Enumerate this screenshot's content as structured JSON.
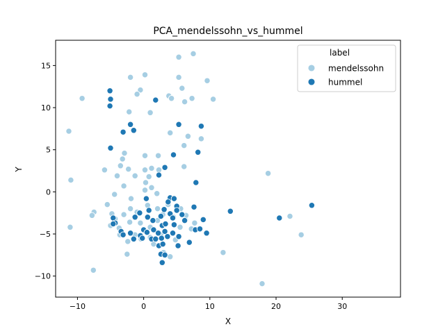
{
  "chart_data": {
    "type": "scatter",
    "title": "PCA_mendelssohn_vs_hummel",
    "xlabel": "X",
    "ylabel": "Y",
    "xlim": [
      -13.3,
      38.8
    ],
    "ylim": [
      -12.5,
      18.0
    ],
    "xticks": [
      -10,
      0,
      10,
      20,
      30
    ],
    "yticks": [
      -10,
      -5,
      0,
      5,
      10,
      15
    ],
    "grid": false,
    "legend": {
      "title": "label",
      "placement": "top-right"
    },
    "series": [
      {
        "name": "mendelssohn",
        "color": "#a6cee3",
        "points": [
          [
            5.3,
            16.0
          ],
          [
            7.5,
            16.4
          ],
          [
            -2.0,
            13.6
          ],
          [
            0.2,
            13.9
          ],
          [
            5.3,
            13.6
          ],
          [
            9.6,
            13.2
          ],
          [
            -0.5,
            12.1
          ],
          [
            3.8,
            11.4
          ],
          [
            5.8,
            12.3
          ],
          [
            -1.0,
            11.6
          ],
          [
            -9.3,
            11.1
          ],
          [
            4.2,
            11.1
          ],
          [
            7.3,
            11.1
          ],
          [
            10.5,
            11.0
          ],
          [
            6.2,
            10.7
          ],
          [
            1.0,
            9.4
          ],
          [
            -2.2,
            9.5
          ],
          [
            4.0,
            7.0
          ],
          [
            -11.3,
            7.2
          ],
          [
            6.7,
            6.6
          ],
          [
            8.7,
            6.3
          ],
          [
            6.1,
            5.5
          ],
          [
            -2.9,
            4.6
          ],
          [
            -3.2,
            3.9
          ],
          [
            0.2,
            4.3
          ],
          [
            2.2,
            4.3
          ],
          [
            6.1,
            3.0
          ],
          [
            1.2,
            2.8
          ],
          [
            -2.3,
            2.7
          ],
          [
            -5.9,
            2.6
          ],
          [
            0.2,
            2.6
          ],
          [
            2.3,
            2.6
          ],
          [
            -3.5,
            3.1
          ],
          [
            -4.0,
            1.9
          ],
          [
            -1.3,
            1.9
          ],
          [
            0.8,
            1.8
          ],
          [
            -3.0,
            0.7
          ],
          [
            -11.0,
            1.4
          ],
          [
            0.3,
            1.1
          ],
          [
            1.2,
            0.5
          ],
          [
            -4.4,
            -0.3
          ],
          [
            2.0,
            -0.2
          ],
          [
            -1.9,
            -0.8
          ],
          [
            0.2,
            0.2
          ],
          [
            -7.5,
            -2.4
          ],
          [
            -5.5,
            -1.5
          ],
          [
            -7.8,
            -2.8
          ],
          [
            -11.1,
            -4.2
          ],
          [
            -4.8,
            -2.6
          ],
          [
            -4.3,
            -3.2
          ],
          [
            -2.0,
            -2.0
          ],
          [
            -1.0,
            -2.4
          ],
          [
            0.6,
            -1.6
          ],
          [
            2.1,
            -2.0
          ],
          [
            -3.0,
            -2.7
          ],
          [
            -2.1,
            -3.6
          ],
          [
            -0.5,
            -3.7
          ],
          [
            -4.9,
            -4.0
          ],
          [
            -1.3,
            -5.1
          ],
          [
            -0.4,
            -5.6
          ],
          [
            1.0,
            -4.2
          ],
          [
            2.6,
            -5.1
          ],
          [
            -2.4,
            -5.9
          ],
          [
            -3.6,
            -5.1
          ],
          [
            1.5,
            -6.2
          ],
          [
            4.0,
            -7.7
          ],
          [
            -2.5,
            -7.4
          ],
          [
            -7.6,
            -9.3
          ],
          [
            4.5,
            -3.0
          ],
          [
            6.3,
            -3.3
          ],
          [
            7.7,
            -3.7
          ],
          [
            5.5,
            -4.2
          ],
          [
            3.7,
            -1.5
          ],
          [
            5.6,
            -2.0
          ],
          [
            6.4,
            -2.8
          ],
          [
            2.9,
            -2.7
          ],
          [
            12.0,
            -7.2
          ],
          [
            18.8,
            2.2
          ],
          [
            22.1,
            -2.9
          ],
          [
            23.8,
            -5.1
          ],
          [
            17.9,
            -10.9
          ],
          [
            -5.0,
            -4.0
          ],
          [
            3.0,
            -7.2
          ],
          [
            -3.7,
            -4.3
          ],
          [
            1.0,
            -5.4
          ],
          [
            4.8,
            -5.7
          ],
          [
            7.2,
            -4.4
          ],
          [
            2.1,
            -3.4
          ]
        ]
      },
      {
        "name": "hummel",
        "color": "#1f78b4",
        "points": [
          [
            -5.1,
            12.0
          ],
          [
            -5.0,
            11.0
          ],
          [
            1.8,
            10.9
          ],
          [
            -5.1,
            10.2
          ],
          [
            5.3,
            8.0
          ],
          [
            8.7,
            7.8
          ],
          [
            -2.0,
            8.0
          ],
          [
            -1.5,
            7.3
          ],
          [
            -3.1,
            7.1
          ],
          [
            -5.0,
            5.2
          ],
          [
            4.5,
            4.4
          ],
          [
            8.2,
            4.7
          ],
          [
            3.2,
            2.9
          ],
          [
            2.3,
            2.0
          ],
          [
            7.9,
            1.1
          ],
          [
            4.0,
            -0.7
          ],
          [
            4.6,
            -0.8
          ],
          [
            0.4,
            -0.8
          ],
          [
            3.7,
            -1.2
          ],
          [
            5.0,
            -1.7
          ],
          [
            0.8,
            -2.2
          ],
          [
            3.1,
            -2.1
          ],
          [
            -0.6,
            -2.5
          ],
          [
            4.0,
            -2.6
          ],
          [
            5.8,
            -2.7
          ],
          [
            7.6,
            -1.8
          ],
          [
            0.6,
            -3.0
          ],
          [
            2.6,
            -2.9
          ],
          [
            4.4,
            -3.1
          ],
          [
            6.2,
            -3.4
          ],
          [
            -4.6,
            -3.1
          ],
          [
            -1.3,
            -3.0
          ],
          [
            1.4,
            -3.4
          ],
          [
            2.8,
            -4.0
          ],
          [
            4.6,
            -3.9
          ],
          [
            -4.3,
            -3.7
          ],
          [
            0.0,
            -4.5
          ],
          [
            1.5,
            -4.5
          ],
          [
            3.2,
            -4.7
          ],
          [
            -3.4,
            -4.7
          ],
          [
            -2.0,
            -4.9
          ],
          [
            0.5,
            -4.8
          ],
          [
            2.2,
            -4.9
          ],
          [
            4.4,
            -4.9
          ],
          [
            7.8,
            -4.5
          ],
          [
            8.5,
            -4.4
          ],
          [
            9.5,
            -4.9
          ],
          [
            -1.5,
            -5.6
          ],
          [
            -0.5,
            -5.2
          ],
          [
            1.2,
            -5.6
          ],
          [
            2.7,
            -5.5
          ],
          [
            3.6,
            -5.3
          ],
          [
            5.3,
            -5.3
          ],
          [
            -3.1,
            -5.1
          ],
          [
            -0.2,
            -5.5
          ],
          [
            2.3,
            -6.4
          ],
          [
            2.9,
            -6.2
          ],
          [
            5.2,
            -6.4
          ],
          [
            6.9,
            -6.0
          ],
          [
            2.6,
            -7.4
          ],
          [
            3.2,
            -7.5
          ],
          [
            2.8,
            -8.4
          ],
          [
            9.0,
            -3.3
          ],
          [
            13.1,
            -2.3
          ],
          [
            20.5,
            -3.1
          ],
          [
            25.4,
            -1.6
          ],
          [
            -4.6,
            -3.8
          ],
          [
            3.3,
            -3.8
          ],
          [
            5.0,
            -2.2
          ],
          [
            1.8,
            -5.6
          ]
        ]
      }
    ]
  }
}
